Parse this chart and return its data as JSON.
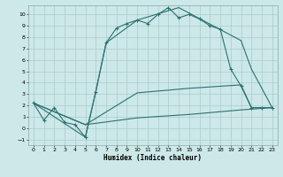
{
  "xlabel": "Humidex (Indice chaleur)",
  "bg_color": "#cce8e8",
  "line_color": "#2d7070",
  "grid_color": "#aacccc",
  "xlim": [
    -0.5,
    23.5
  ],
  "ylim": [
    -1.5,
    10.8
  ],
  "xticks": [
    0,
    1,
    2,
    3,
    4,
    5,
    6,
    7,
    8,
    9,
    10,
    11,
    12,
    13,
    14,
    15,
    16,
    17,
    18,
    19,
    20,
    21,
    22,
    23
  ],
  "yticks": [
    -1,
    0,
    1,
    2,
    3,
    4,
    5,
    6,
    7,
    8,
    9,
    10
  ],
  "line1_x": [
    0,
    1,
    2,
    3,
    4,
    5,
    6,
    7,
    8,
    9,
    10,
    11,
    12,
    13,
    14,
    15,
    16,
    17,
    18,
    19,
    20,
    21,
    22,
    23
  ],
  "line1_y": [
    2.2,
    0.7,
    1.8,
    0.5,
    0.3,
    -0.8,
    3.2,
    7.5,
    8.8,
    9.2,
    9.5,
    9.2,
    10.0,
    10.6,
    9.7,
    10.0,
    9.6,
    9.0,
    8.7,
    5.2,
    3.7,
    1.8,
    1.8,
    1.8
  ],
  "line2_x": [
    0,
    5,
    6,
    7,
    10,
    14,
    20,
    21,
    23
  ],
  "line2_y": [
    2.2,
    -0.8,
    3.2,
    7.5,
    9.5,
    10.6,
    7.7,
    5.2,
    1.8
  ],
  "line3_x": [
    0,
    5,
    10,
    15,
    20,
    21,
    23
  ],
  "line3_y": [
    2.2,
    0.3,
    3.1,
    3.5,
    3.8,
    1.8,
    1.8
  ],
  "line4_x": [
    0,
    5,
    10,
    15,
    20,
    23
  ],
  "line4_y": [
    2.2,
    0.3,
    0.9,
    1.2,
    1.6,
    1.8
  ]
}
